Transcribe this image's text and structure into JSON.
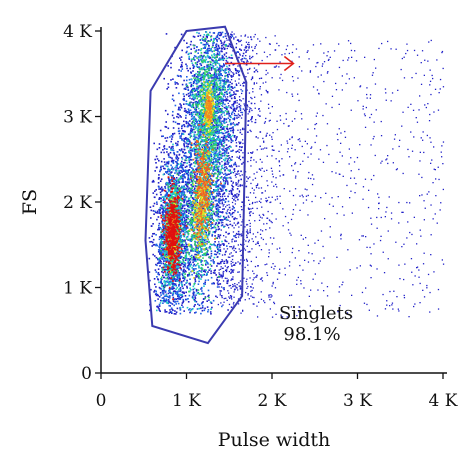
{
  "chart_data": {
    "type": "scatter",
    "subtype": "flow-cytometry density scatter",
    "xlabel": "Pulse width",
    "ylabel": "FS",
    "xlim": [
      0,
      4000
    ],
    "ylim": [
      0,
      4000
    ],
    "x_ticks": [
      0,
      1000,
      2000,
      3000,
      4000
    ],
    "x_tick_labels": [
      "0",
      "1 K",
      "2 K",
      "3 K",
      "4 K"
    ],
    "y_ticks": [
      0,
      1000,
      2000,
      3000,
      4000
    ],
    "y_tick_labels": [
      "0",
      "1 K",
      "2 K",
      "3 K",
      "4 K"
    ],
    "grid": false,
    "gate": {
      "name": "Singlets",
      "percent_label": "98.1%",
      "polygon": [
        [
          1000,
          4000
        ],
        [
          1450,
          4050
        ],
        [
          1700,
          3400
        ],
        [
          1650,
          900
        ],
        [
          1250,
          350
        ],
        [
          600,
          550
        ],
        [
          520,
          1550
        ],
        [
          580,
          3300
        ]
      ],
      "color": "#3b3bb0"
    },
    "arrow": {
      "from": [
        1450,
        3620
      ],
      "to": [
        2250,
        3620
      ],
      "color": "#e0201a"
    },
    "density_clusters": [
      {
        "x": 830,
        "y": 1650,
        "sx": 70,
        "sy": 380,
        "rot": -0.05,
        "peak": "red"
      },
      {
        "x": 1170,
        "y": 2000,
        "sx": 120,
        "sy": 700,
        "rot": -0.08,
        "peak": "yellow"
      },
      {
        "x": 1250,
        "y": 3100,
        "sx": 120,
        "sy": 500,
        "rot": 0.0,
        "peak": "green"
      }
    ],
    "colors": {
      "low": "#2020c8",
      "mid": "#20c8c8",
      "high": "#f0e020",
      "peak": "#e01010",
      "axis": "#111111"
    }
  },
  "annotation": {
    "line1": "Singlets",
    "line2": "98.1%"
  }
}
